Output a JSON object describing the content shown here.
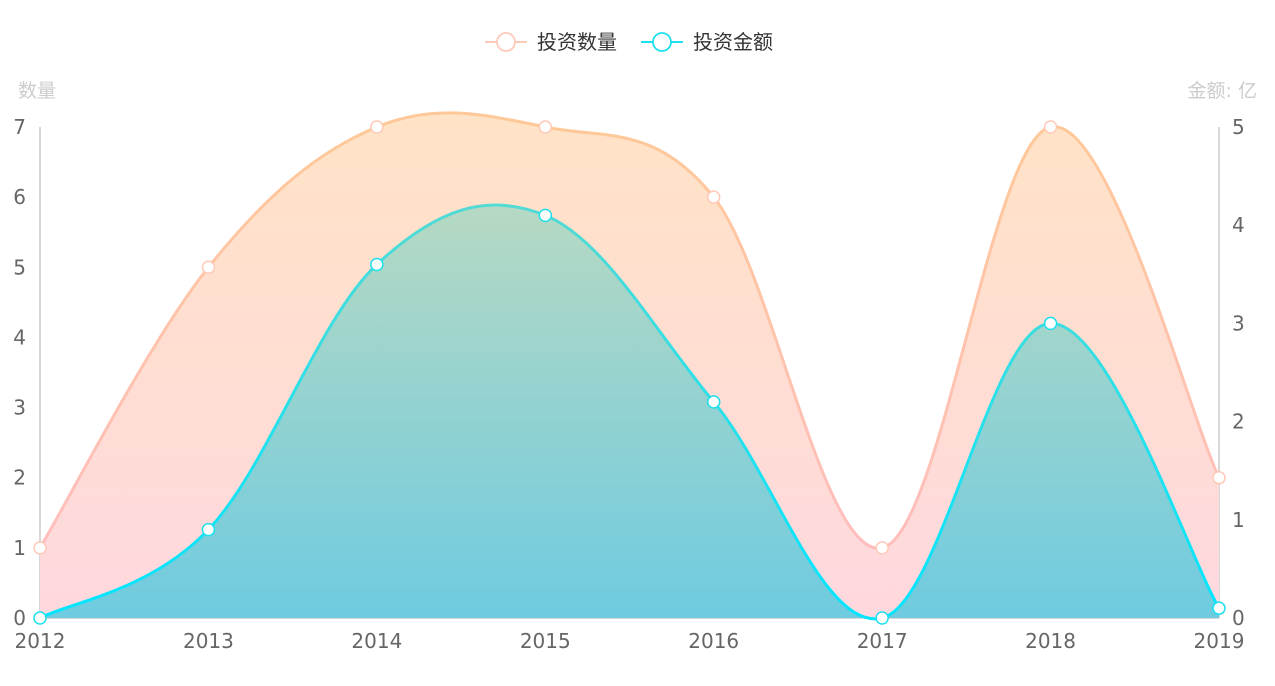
{
  "chart_data": {
    "type": "area",
    "title": "",
    "categories": [
      "2012",
      "2013",
      "2014",
      "2015",
      "2016",
      "2017",
      "2018",
      "2019"
    ],
    "y_left": {
      "label": "数量",
      "range": [
        0,
        7
      ],
      "ticks": [
        "0",
        "1",
        "2",
        "3",
        "4",
        "5",
        "6",
        "7"
      ]
    },
    "y_right": {
      "label": "金额: 亿",
      "range": [
        0,
        5
      ],
      "ticks": [
        "0",
        "1",
        "2",
        "3",
        "4",
        "5"
      ]
    },
    "legend_position": "top-center",
    "smooth": true,
    "grid": false,
    "series": [
      {
        "name": "投资数量",
        "axis": "left",
        "values": [
          1,
          5,
          7,
          7,
          6,
          1,
          7,
          2
        ],
        "colors": {
          "line_top": "#ffc898",
          "line_bottom": "#ffbcc4",
          "fill_top": "#ffe3c6",
          "fill_bottom": "#ffd8df"
        }
      },
      {
        "name": "投资金额",
        "axis": "right",
        "values": [
          0,
          0.9,
          3.6,
          4.1,
          2.2,
          0,
          3.0,
          0.1
        ],
        "colors": {
          "line_top": "#62d8cc",
          "line_bottom": "#00e6ff",
          "fill_top": "#b6d9c3",
          "fill_bottom": "#6ecbe0"
        }
      }
    ]
  }
}
